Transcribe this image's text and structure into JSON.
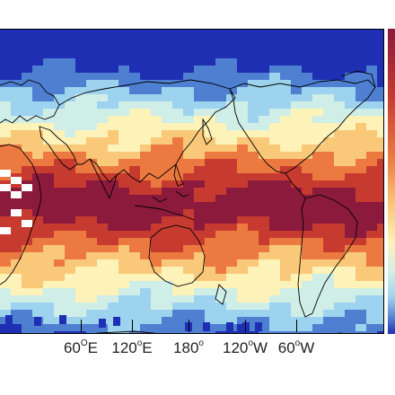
{
  "map": {
    "longitude_labels": [
      {
        "deg": "60",
        "sym": "O",
        "hemi": "E"
      },
      {
        "deg": "120",
        "sym": "o",
        "hemi": "E"
      },
      {
        "deg": "180",
        "sym": "o",
        "hemi": ""
      },
      {
        "deg": "120",
        "sym": "o",
        "hemi": "W"
      },
      {
        "deg": "60",
        "sym": "o",
        "hemi": "W"
      }
    ],
    "colormap": [
      "#1f2fb3",
      "#4f7fd1",
      "#9dd3ee",
      "#cfeee8",
      "#fdf2b8",
      "#f9c878",
      "#ec7a40",
      "#c63a30",
      "#8c1a3c"
    ],
    "missing_color": "#ffffff",
    "coastline_color": "#000000"
  }
}
